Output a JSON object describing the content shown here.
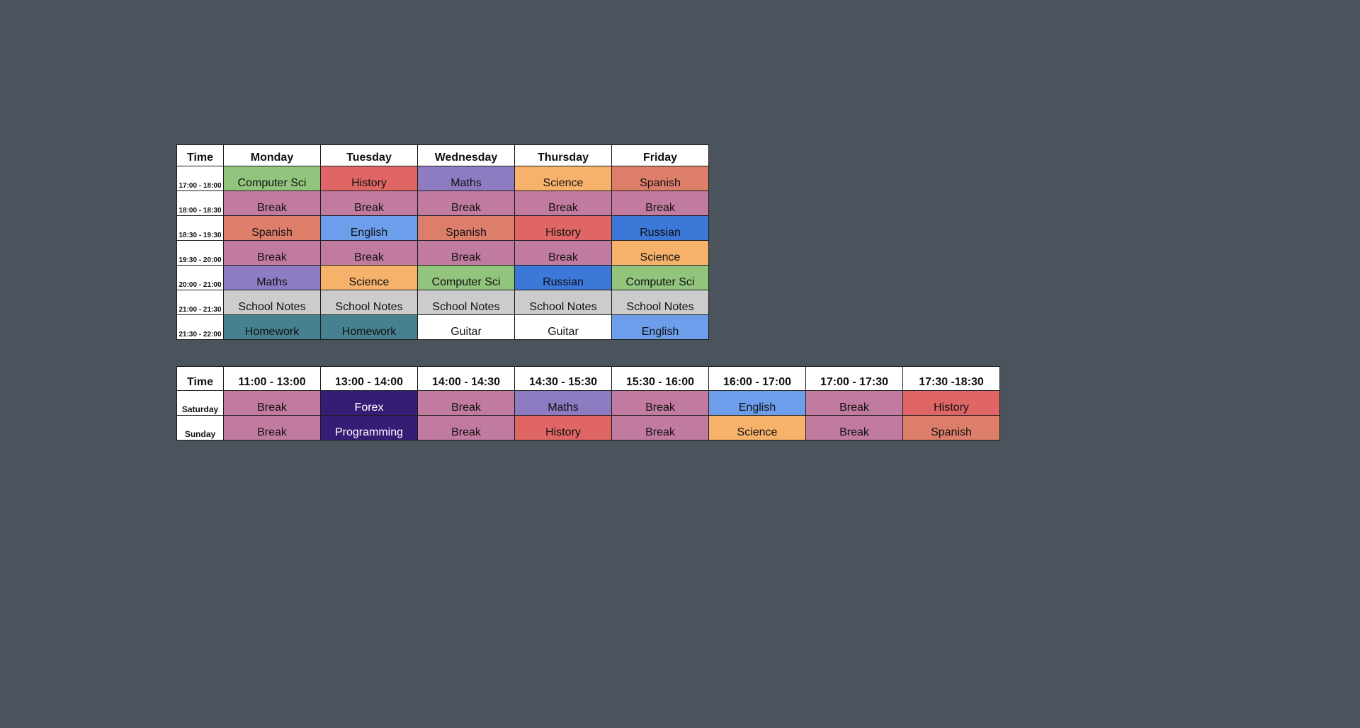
{
  "colors": {
    "background": "#4b535c",
    "Computer Sci": "#93c47d",
    "History": "#e06666",
    "Maths": "#8e7cc3",
    "Science": "#f6b26b",
    "Spanish": "#dd7e6b",
    "Break": "#c27ba0",
    "English": "#6d9eeb",
    "Russian": "#3c78d8",
    "School Notes": "#cccccc",
    "Homework": "#45818e",
    "Guitar": "#ffffff",
    "Forex": "#351c75",
    "Programming": "#351c75"
  },
  "light_text_subjects": [
    "Forex",
    "Programming"
  ],
  "weekday": {
    "time_header": "Time",
    "days": [
      "Monday",
      "Tuesday",
      "Wednesday",
      "Thursday",
      "Friday"
    ],
    "rows": [
      {
        "time": "17:00 - 18:00",
        "cells": [
          "Computer Sci",
          "History",
          "Maths",
          "Science",
          "Spanish"
        ]
      },
      {
        "time": "18:00 - 18:30",
        "cells": [
          "Break",
          "Break",
          "Break",
          "Break",
          "Break"
        ]
      },
      {
        "time": "18:30 - 19:30",
        "cells": [
          "Spanish",
          "English",
          "Spanish",
          "History",
          "Russian"
        ]
      },
      {
        "time": "19:30 - 20:00",
        "cells": [
          "Break",
          "Break",
          "Break",
          "Break",
          "Science"
        ]
      },
      {
        "time": "20:00 - 21:00",
        "cells": [
          "Maths",
          "Science",
          "Computer Sci",
          "Russian",
          "Computer Sci"
        ]
      },
      {
        "time": "21:00 - 21:30",
        "cells": [
          "School Notes",
          "School Notes",
          "School Notes",
          "School Notes",
          "School Notes"
        ]
      },
      {
        "time": "21:30 - 22:00",
        "cells": [
          "Homework",
          "Homework",
          "Guitar",
          "Guitar",
          "English"
        ]
      }
    ]
  },
  "weekend": {
    "time_header": "Time",
    "slots": [
      "11:00 - 13:00",
      "13:00 - 14:00",
      "14:00 - 14:30",
      "14:30 - 15:30",
      "15:30 - 16:00",
      "16:00 - 17:00",
      "17:00 - 17:30",
      "17:30 -18:30"
    ],
    "rows": [
      {
        "day": "Saturday",
        "cells": [
          "Break",
          "Forex",
          "Break",
          "Maths",
          "Break",
          "English",
          "Break",
          "History"
        ]
      },
      {
        "day": "Sunday",
        "cells": [
          "Break",
          "Programming",
          "Break",
          "History",
          "Break",
          "Science",
          "Break",
          "Spanish"
        ]
      }
    ]
  }
}
